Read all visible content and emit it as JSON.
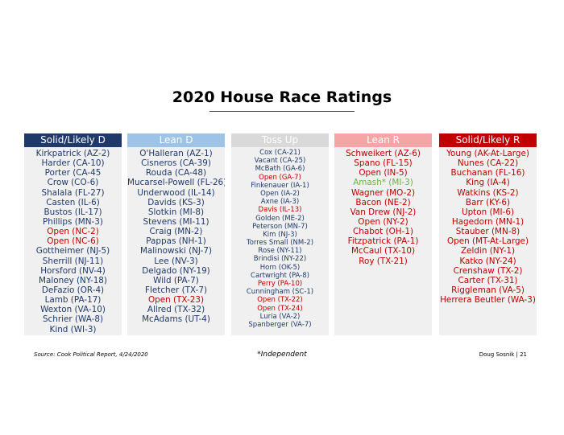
{
  "title": "2020 House Race Ratings",
  "colors": {
    "dem": "#1f3a68",
    "rep": "#c00000",
    "independent": "#70ad47",
    "open_dem": "#c00000",
    "open_rep": "#c00000",
    "solid_d_header": "#1f3a68",
    "lean_d_header": "#9dc3e6",
    "toss_up_header": "#d9d9d9",
    "lean_r_header": "#f4a6a6",
    "solid_r_header": "#c00000"
  },
  "columns": [
    {
      "id": "solid-likely-d",
      "header": "Solid/Likely D",
      "races": [
        {
          "text": "Kirkpatrick (AZ-2)",
          "party": "dem"
        },
        {
          "text": "Harder (CA-10)",
          "party": "dem"
        },
        {
          "text": "Porter (CA-45",
          "party": "dem"
        },
        {
          "text": "Crow (CO-6)",
          "party": "dem"
        },
        {
          "text": "Shalala (FL-27)",
          "party": "dem"
        },
        {
          "text": "Casten (IL-6)",
          "party": "dem"
        },
        {
          "text": "Bustos (IL-17)",
          "party": "dem"
        },
        {
          "text": "Phillips (MN-3)",
          "party": "dem"
        },
        {
          "text": "Open (NC-2)",
          "party": "open"
        },
        {
          "text": "Open (NC-6)",
          "party": "open"
        },
        {
          "text": "Gottheimer (NJ-5)",
          "party": "dem"
        },
        {
          "text": "Sherrill (NJ-11)",
          "party": "dem"
        },
        {
          "text": "Horsford (NV-4)",
          "party": "dem"
        },
        {
          "text": "Maloney (NY-18)",
          "party": "dem"
        },
        {
          "text": "DeFazio (OR-4)",
          "party": "dem"
        },
        {
          "text": "Lamb (PA-17)",
          "party": "dem"
        },
        {
          "text": "Wexton (VA-10)",
          "party": "dem"
        },
        {
          "text": "Schrier (WA-8)",
          "party": "dem"
        },
        {
          "text": "Kind (WI-3)",
          "party": "dem"
        }
      ]
    },
    {
      "id": "lean-d",
      "header": "Lean D",
      "races": [
        {
          "text": "O'Halleran (AZ-1)",
          "party": "dem"
        },
        {
          "text": "Cisneros (CA-39)",
          "party": "dem"
        },
        {
          "text": "Rouda (CA-48)",
          "party": "dem"
        },
        {
          "text": "Mucarsel-Powell (FL-26)",
          "party": "dem"
        },
        {
          "text": "Underwood (IL-14)",
          "party": "dem"
        },
        {
          "text": "Davids (KS-3)",
          "party": "dem"
        },
        {
          "text": "Slotkin (MI-8)",
          "party": "dem"
        },
        {
          "text": "Stevens (MI-11)",
          "party": "dem"
        },
        {
          "text": "Craig (MN-2)",
          "party": "dem"
        },
        {
          "text": "Pappas (NH-1)",
          "party": "dem"
        },
        {
          "text": "Malinowski (NJ-7)",
          "party": "dem"
        },
        {
          "text": "Lee (NV-3)",
          "party": "dem"
        },
        {
          "text": "Delgado (NY-19)",
          "party": "dem"
        },
        {
          "text": "Wild (PA-7)",
          "party": "dem"
        },
        {
          "text": "Fletcher (TX-7)",
          "party": "dem"
        },
        {
          "text": "Open (TX-23)",
          "party": "open"
        },
        {
          "text": "Allred (TX-32)",
          "party": "dem"
        },
        {
          "text": "McAdams (UT-4)",
          "party": "dem"
        }
      ]
    },
    {
      "id": "toss-up",
      "header": "Toss Up",
      "races": [
        {
          "text": "Cox (CA-21)",
          "party": "dem"
        },
        {
          "text": "Vacant (CA-25)",
          "party": "dem"
        },
        {
          "text": "McBath (GA-6)",
          "party": "dem"
        },
        {
          "text": "Open (GA-7)",
          "party": "open"
        },
        {
          "text": "Finkenauer (IA-1)",
          "party": "dem"
        },
        {
          "text": "Open (IA-2)",
          "party": "dem"
        },
        {
          "text": "Axne (IA-3)",
          "party": "dem"
        },
        {
          "text": "Davis (IL-13)",
          "party": "rep"
        },
        {
          "text": "Golden (ME-2)",
          "party": "dem"
        },
        {
          "text": "Peterson (MN-7)",
          "party": "dem"
        },
        {
          "text": "Kim (NJ-3)",
          "party": "dem"
        },
        {
          "text": "Torres Small (NM-2)",
          "party": "dem"
        },
        {
          "text": "Rose (NY-11)",
          "party": "dem"
        },
        {
          "text": "Brindisi (NY-22)",
          "party": "dem"
        },
        {
          "text": "Horn (OK-5)",
          "party": "dem"
        },
        {
          "text": "Cartwright (PA-8)",
          "party": "dem"
        },
        {
          "text": "Perry (PA-10)",
          "party": "rep"
        },
        {
          "text": "Cunningham (SC-1)",
          "party": "dem"
        },
        {
          "text": "Open (TX-22)",
          "party": "open"
        },
        {
          "text": "Open (TX-24)",
          "party": "open"
        },
        {
          "text": "Luria (VA-2)",
          "party": "dem"
        },
        {
          "text": "Spanberger (VA-7)",
          "party": "dem"
        }
      ]
    },
    {
      "id": "lean-r",
      "header": "Lean R",
      "races": [
        {
          "text": "Schweikert (AZ-6)",
          "party": "rep"
        },
        {
          "text": "Spano (FL-15)",
          "party": "rep"
        },
        {
          "text": "Open (IN-5)",
          "party": "rep"
        },
        {
          "text": "Amash* (MI-3)",
          "party": "independent"
        },
        {
          "text": "Wagner (MO-2)",
          "party": "rep"
        },
        {
          "text": "Bacon (NE-2)",
          "party": "rep"
        },
        {
          "text": "Van Drew (NJ-2)",
          "party": "rep"
        },
        {
          "text": "Open (NY-2)",
          "party": "rep"
        },
        {
          "text": "Chabot (OH-1)",
          "party": "rep"
        },
        {
          "text": "Fitzpatrick (PA-1)",
          "party": "rep"
        },
        {
          "text": "McCaul (TX-10)",
          "party": "rep"
        },
        {
          "text": "Roy (TX-21)",
          "party": "rep"
        }
      ]
    },
    {
      "id": "solid-likely-r",
      "header": "Solid/Likely R",
      "races": [
        {
          "text": "Young (AK-At-Large)",
          "party": "rep"
        },
        {
          "text": "Nunes (CA-22)",
          "party": "rep"
        },
        {
          "text": "Buchanan (FL-16)",
          "party": "rep"
        },
        {
          "text": "King (IA-4)",
          "party": "rep"
        },
        {
          "text": "Watkins (KS-2)",
          "party": "rep"
        },
        {
          "text": "Barr (KY-6)",
          "party": "rep"
        },
        {
          "text": "Upton (MI-6)",
          "party": "rep"
        },
        {
          "text": "Hagedorn (MN-1)",
          "party": "rep"
        },
        {
          "text": "Stauber (MN-8)",
          "party": "rep"
        },
        {
          "text": "Open (MT-At-Large)",
          "party": "rep"
        },
        {
          "text": "Zeldin (NY-1)",
          "party": "rep"
        },
        {
          "text": "Katko (NY-24)",
          "party": "rep"
        },
        {
          "text": "Crenshaw (TX-2)",
          "party": "rep"
        },
        {
          "text": "Carter (TX-31)",
          "party": "rep"
        },
        {
          "text": "Riggleman (VA-5)",
          "party": "rep"
        },
        {
          "text": "Herrera Beutler (WA-3)",
          "party": "rep"
        }
      ]
    }
  ],
  "footer": {
    "source": "Source: Cook Political Report, 4/24/2020",
    "independent_note": "*Independent",
    "author": "Doug Sosnik | 21"
  }
}
